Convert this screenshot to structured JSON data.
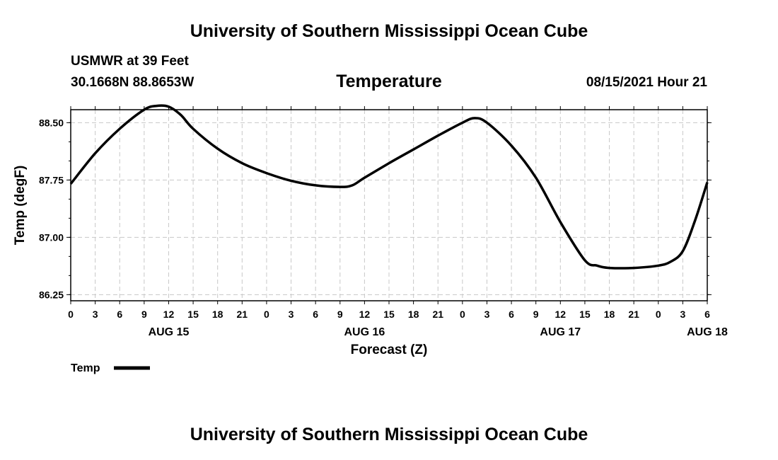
{
  "header": {
    "title": "University of Southern Mississippi Ocean Cube",
    "station": "USMWR at 39 Feet",
    "coordinates": "30.1668N  88.8653W",
    "issued": "08/15/2021 Hour 21"
  },
  "footer": {
    "title": "University of Southern Mississippi Ocean Cube"
  },
  "chart_data": {
    "type": "line",
    "title": "Temperature",
    "xlabel": "Forecast (Z)",
    "ylabel": "Temp (degF)",
    "ylim": [
      86.17,
      88.67
    ],
    "yticks": [
      86.25,
      87.0,
      87.75,
      88.5
    ],
    "ytick_labels": [
      "86.25",
      "87.00",
      "87.75",
      "88.50"
    ],
    "xlim": [
      0,
      78
    ],
    "xticks": [
      0,
      3,
      6,
      9,
      12,
      15,
      18,
      21,
      24,
      27,
      30,
      33,
      36,
      39,
      42,
      45,
      48,
      51,
      54,
      57,
      60,
      63,
      66,
      69,
      72,
      75,
      78
    ],
    "xtick_labels": [
      "0",
      "3",
      "6",
      "9",
      "12",
      "15",
      "18",
      "21",
      "0",
      "3",
      "6",
      "9",
      "12",
      "15",
      "18",
      "21",
      "0",
      "3",
      "6",
      "9",
      "12",
      "15",
      "18",
      "21",
      "0",
      "3",
      "6"
    ],
    "date_labels": [
      {
        "hour": 12,
        "label": "AUG 15"
      },
      {
        "hour": 36,
        "label": "AUG 16"
      },
      {
        "hour": 60,
        "label": "AUG 17"
      },
      {
        "hour": 78,
        "label": "AUG 18"
      }
    ],
    "grid": true,
    "legend": [
      {
        "label": "Temp",
        "position": "below-left"
      }
    ],
    "series": [
      {
        "name": "Temp",
        "x": [
          0,
          3,
          6,
          9,
          10.5,
          12,
          13.5,
          15,
          18,
          21,
          24,
          27,
          30,
          33,
          34.5,
          36,
          39,
          42,
          45,
          48,
          49.5,
          51,
          54,
          57,
          60,
          63,
          64.5,
          66,
          69,
          72,
          73.5,
          75,
          76.5,
          78
        ],
        "values": [
          87.7,
          88.1,
          88.42,
          88.67,
          88.72,
          88.71,
          88.6,
          88.42,
          88.16,
          87.97,
          87.84,
          87.74,
          87.68,
          87.66,
          87.68,
          87.78,
          87.97,
          88.15,
          88.33,
          88.5,
          88.56,
          88.5,
          88.2,
          87.78,
          87.2,
          86.7,
          86.63,
          86.6,
          86.6,
          86.63,
          86.68,
          86.82,
          87.22,
          87.72
        ]
      }
    ]
  }
}
